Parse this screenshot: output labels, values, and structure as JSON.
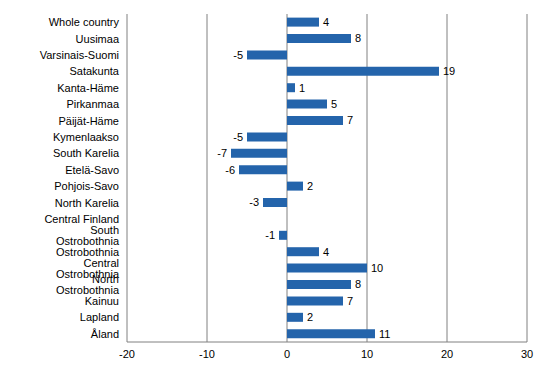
{
  "chart_data": {
    "type": "bar",
    "orientation": "horizontal",
    "categories": [
      "Whole country",
      "Uusimaa",
      "Varsinais-Suomi",
      "Satakunta",
      "Kanta-Häme",
      "Pirkanmaa",
      "Päijät-Häme",
      "Kymenlaakso",
      "South Karelia",
      "Etelä-Savo",
      "Pohjois-Savo",
      "North Karelia",
      "Central Finland",
      "South Ostrobothnia",
      "Ostrobothnia",
      "Central Ostrobothnia",
      "North Ostrobothnia",
      "Kainuu",
      "Lapland",
      "Åland"
    ],
    "values": [
      4,
      8,
      -5,
      19,
      1,
      5,
      7,
      -5,
      -7,
      -6,
      2,
      -3,
      0,
      -1,
      4,
      10,
      8,
      7,
      2,
      11
    ],
    "color": "#2464ab",
    "xlim": [
      -20,
      30
    ],
    "xticks": [
      -20,
      -10,
      0,
      10,
      20,
      30
    ],
    "grid": true,
    "data_labels": true
  }
}
